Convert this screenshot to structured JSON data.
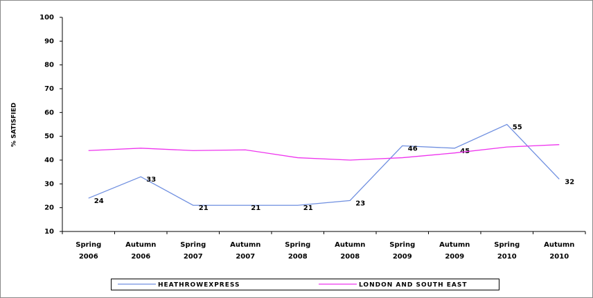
{
  "chart_data": {
    "type": "line",
    "y_label": "% SATISFIED",
    "categories": [
      "Spring 2006",
      "Autumn 2006",
      "Spring 2007",
      "Autumn 2007",
      "Spring 2008",
      "Autumn 2008",
      "Spring 2009",
      "Autumn 2009",
      "Spring 2010",
      "Autumn 2010"
    ],
    "series": [
      {
        "name": "HEATHROWEXPRESS",
        "color": "#6f8fe0",
        "values": [
          24,
          33,
          21,
          21,
          21,
          23,
          46,
          45,
          55,
          32
        ],
        "show_labels": true
      },
      {
        "name": "LONDON AND SOUTH EAST",
        "color": "#ee33ee",
        "values": [
          44,
          45,
          44,
          44.3,
          41,
          40,
          41,
          43,
          45.5,
          46.5
        ],
        "show_labels": false
      }
    ],
    "ylim": [
      10,
      100
    ],
    "yticks": [
      10,
      20,
      30,
      40,
      50,
      60,
      70,
      80,
      90,
      100
    ],
    "grid": false,
    "legend": "bottom"
  }
}
